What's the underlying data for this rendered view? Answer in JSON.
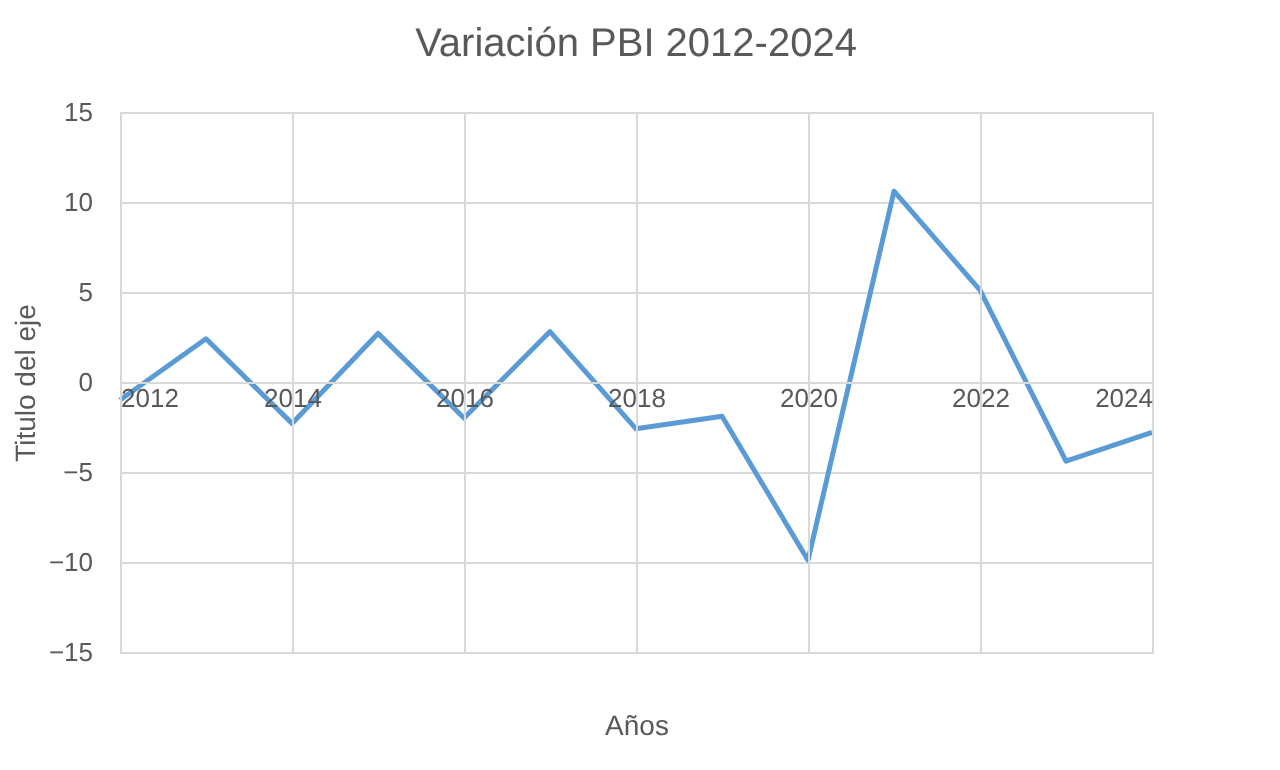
{
  "chart_data": {
    "type": "line",
    "title": "Variación PBI 2012-2024",
    "xlabel": "Años",
    "ylabel": "Titulo del eje",
    "x": [
      2012,
      2013,
      2014,
      2015,
      2016,
      2017,
      2018,
      2019,
      2020,
      2021,
      2022,
      2023,
      2024
    ],
    "series": [
      {
        "color": "#5b9bd5",
        "values": [
          -1.0,
          2.4,
          -2.3,
          2.7,
          -2.0,
          2.8,
          -2.6,
          -1.9,
          -9.9,
          10.6,
          5.1,
          -4.4,
          -2.8
        ]
      }
    ],
    "xlim": [
      2012,
      2024
    ],
    "xticks": [
      2012,
      2014,
      2016,
      2018,
      2020,
      2022,
      2024
    ],
    "ylim": [
      -15,
      15
    ],
    "yticks": [
      -15,
      -10,
      -5,
      0,
      5,
      10,
      15
    ],
    "grid": true,
    "marker": "none",
    "line_style": "solid"
  }
}
